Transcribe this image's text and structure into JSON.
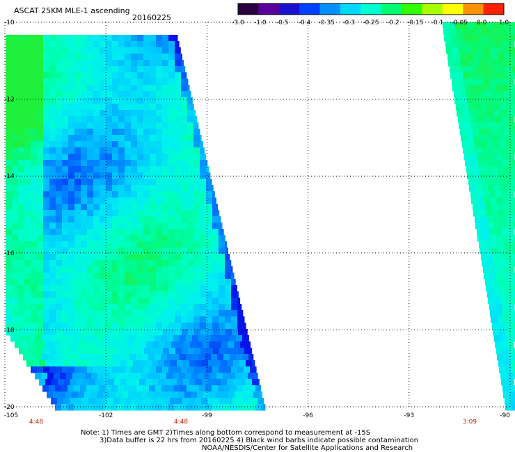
{
  "header": {
    "title": "ASCAT 25KM MLE-1 ascending",
    "date": "20160225"
  },
  "colorbar": {
    "labels": [
      "-3.0",
      "-1.0",
      "-0.5",
      "-0.4",
      "-0.35",
      "-0.3",
      "-0.25",
      "-0.2",
      "-0.15",
      "-0.1",
      "-0.05",
      "0.0",
      "1.0"
    ],
    "colors": [
      "#2a0040",
      "#5a009a",
      "#1a10d0",
      "#0040ff",
      "#0090ff",
      "#00d8ff",
      "#00ffd0",
      "#00ff70",
      "#30ff00",
      "#a8ff00",
      "#ffff00",
      "#ff9000",
      "#ff2000"
    ]
  },
  "axes": {
    "lat_labels": [
      "-10",
      "-12",
      "-14",
      "-16",
      "-18",
      "-20"
    ],
    "lon_labels": [
      "-105",
      "-102",
      "-99",
      "-96",
      "-93",
      "-90"
    ]
  },
  "swath_times": [
    "4:48",
    "4:48",
    "3:09"
  ],
  "notes": {
    "line1": "Note: 1) Times are GMT 2)Times along bottom correspond to measurement at -15S",
    "line2": "3)Data buffer is 22 hrs from 20160225 4) Black wind barbs indicate possible contamination",
    "line3": "NOAA/NESDIS/Center for Satellite Applications and Research"
  }
}
